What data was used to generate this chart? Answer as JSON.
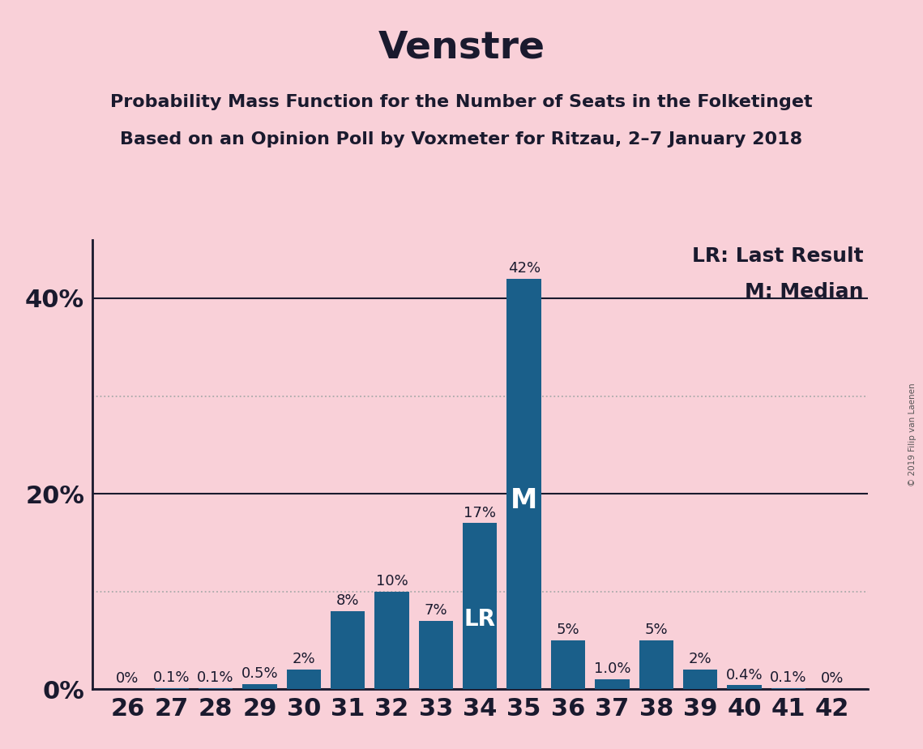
{
  "title": "Venstre",
  "subtitle1": "Probability Mass Function for the Number of Seats in the Folketinget",
  "subtitle2": "Based on an Opinion Poll by Voxmeter for Ritzau, 2–7 January 2018",
  "copyright": "© 2019 Filip van Laenen",
  "legend_lr": "LR: Last Result",
  "legend_m": "M: Median",
  "seats": [
    26,
    27,
    28,
    29,
    30,
    31,
    32,
    33,
    34,
    35,
    36,
    37,
    38,
    39,
    40,
    41,
    42
  ],
  "probabilities": [
    0.0,
    0.1,
    0.1,
    0.5,
    2.0,
    8.0,
    10.0,
    7.0,
    17.0,
    42.0,
    5.0,
    1.0,
    5.0,
    2.0,
    0.4,
    0.1,
    0.0
  ],
  "labels": [
    "0%",
    "0.1%",
    "0.1%",
    "0.5%",
    "2%",
    "8%",
    "10%",
    "7%",
    "17%",
    "42%",
    "5%",
    "1.0%",
    "5%",
    "2%",
    "0.4%",
    "0.1%",
    "0%"
  ],
  "bar_color": "#1a5f8a",
  "background_color": "#f9d0d8",
  "solid_grid_color": "#1a1a2e",
  "dotted_grid_color": "#aaaaaa",
  "ytick_labels_show": [
    0,
    20,
    40
  ],
  "ytick_dotted": [
    10,
    30
  ],
  "ytick_solid": [
    20,
    40
  ],
  "ylim": [
    0,
    46
  ],
  "xlim_min": 25.2,
  "xlim_max": 42.8,
  "lr_seat": 34,
  "median_seat": 35,
  "title_fontsize": 34,
  "subtitle_fontsize": 16,
  "axis_tick_fontsize": 22,
  "label_fontsize": 13,
  "legend_fontsize": 18,
  "lr_label_fontsize": 20,
  "m_label_fontsize": 24
}
